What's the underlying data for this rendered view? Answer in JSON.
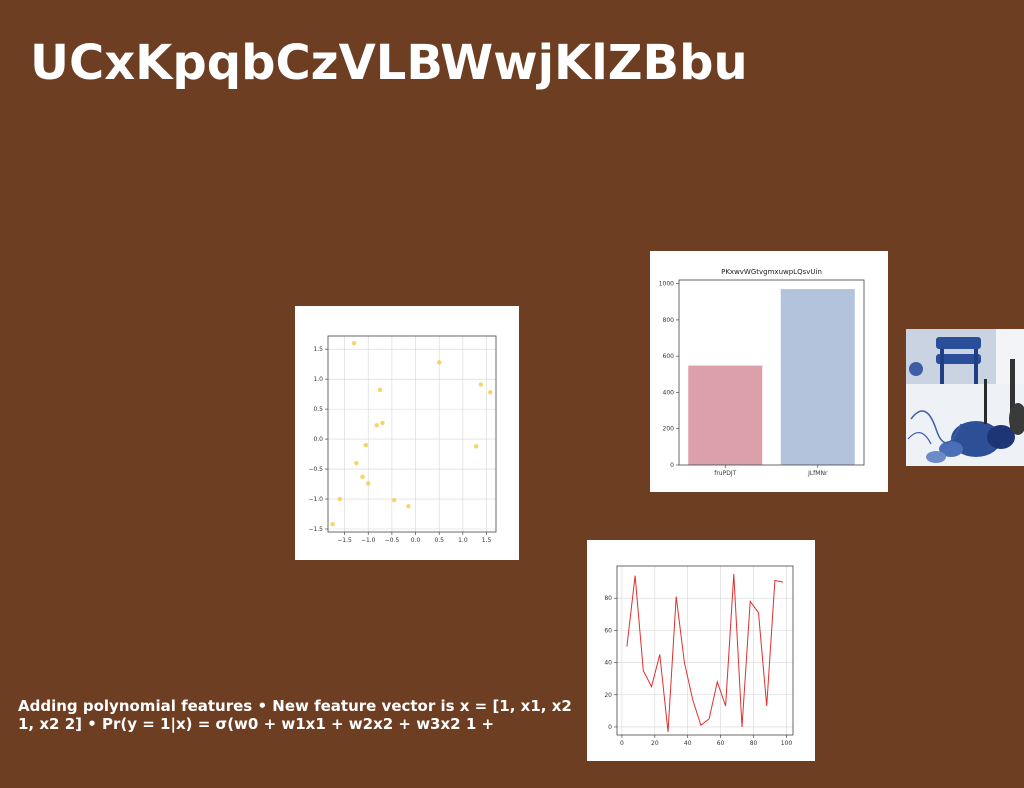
{
  "slide": {
    "title": "UCxKpqbCzVLBWwjKlZBbu",
    "caption": "Adding polynomial features • New feature vector is x = [1, x1, x2 1, x2 2] • Pr(y = 1|x) = σ(w0 + w1x1 + w2x2 + w3x2 1 +",
    "background_color": "#6d3e22"
  },
  "chart_data": [
    {
      "type": "scatter",
      "title": "",
      "xlabel": "",
      "ylabel": "",
      "xlim": [
        -1.85,
        1.7
      ],
      "ylim": [
        -1.55,
        1.72
      ],
      "xticks": [
        -1.5,
        -1.0,
        -0.5,
        0.0,
        0.5,
        1.0,
        1.5
      ],
      "xtick_labels": [
        "−1.5",
        "−1.0",
        "−0.5",
        "0.0",
        "0.5",
        "1.0",
        "1.5"
      ],
      "yticks": [
        -1.5,
        -1.0,
        -0.5,
        0.0,
        0.5,
        1.0,
        1.5
      ],
      "ytick_labels": [
        "−1.5",
        "−1.0",
        "−0.5",
        "0.0",
        "0.5",
        "1.0",
        "1.5"
      ],
      "grid": true,
      "color": "#f5c842",
      "points": [
        {
          "x": -1.75,
          "y": -1.42
        },
        {
          "x": -1.6,
          "y": -1.0
        },
        {
          "x": -1.3,
          "y": 1.6
        },
        {
          "x": -1.25,
          "y": -0.4
        },
        {
          "x": -1.12,
          "y": -0.63
        },
        {
          "x": -1.05,
          "y": -0.1
        },
        {
          "x": -1.0,
          "y": -0.74
        },
        {
          "x": -0.82,
          "y": 0.23
        },
        {
          "x": -0.75,
          "y": 0.82
        },
        {
          "x": -0.7,
          "y": 0.27
        },
        {
          "x": -0.45,
          "y": -1.02
        },
        {
          "x": -0.15,
          "y": -1.12
        },
        {
          "x": 0.5,
          "y": 1.28
        },
        {
          "x": 1.28,
          "y": -0.12
        },
        {
          "x": 1.38,
          "y": 0.91
        },
        {
          "x": 1.58,
          "y": 0.78
        }
      ]
    },
    {
      "type": "bar",
      "title": "PKxwvWGtvgmxuwpLQsvUin",
      "categories": [
        "fruPDJT",
        "JLfMNr"
      ],
      "values": [
        548,
        970
      ],
      "colors": [
        "#dba0aa",
        "#b4c3dc"
      ],
      "xlabel": "",
      "ylabel": "",
      "ylim": [
        0,
        1020
      ],
      "yticks": [
        0,
        200,
        400,
        600,
        800,
        1000
      ],
      "grid": false
    },
    {
      "type": "line",
      "title": "",
      "xlabel": "",
      "ylabel": "",
      "xlim": [
        -3,
        104
      ],
      "ylim": [
        -5,
        100
      ],
      "xticks": [
        0,
        20,
        40,
        60,
        80,
        100
      ],
      "yticks": [
        0,
        20,
        40,
        60,
        80
      ],
      "grid": true,
      "color": "#e03030",
      "x": [
        3,
        8,
        13,
        18,
        23,
        28,
        33,
        38,
        43,
        48,
        53,
        58,
        63,
        68,
        73,
        78,
        83,
        88,
        93,
        98
      ],
      "y": [
        50,
        94,
        35,
        25,
        45,
        -3,
        81,
        40,
        17,
        1,
        5,
        28,
        13,
        95,
        0,
        78,
        71,
        13,
        91,
        90
      ]
    }
  ],
  "photo": {
    "description_icon": "dining-table-photo-icon"
  }
}
